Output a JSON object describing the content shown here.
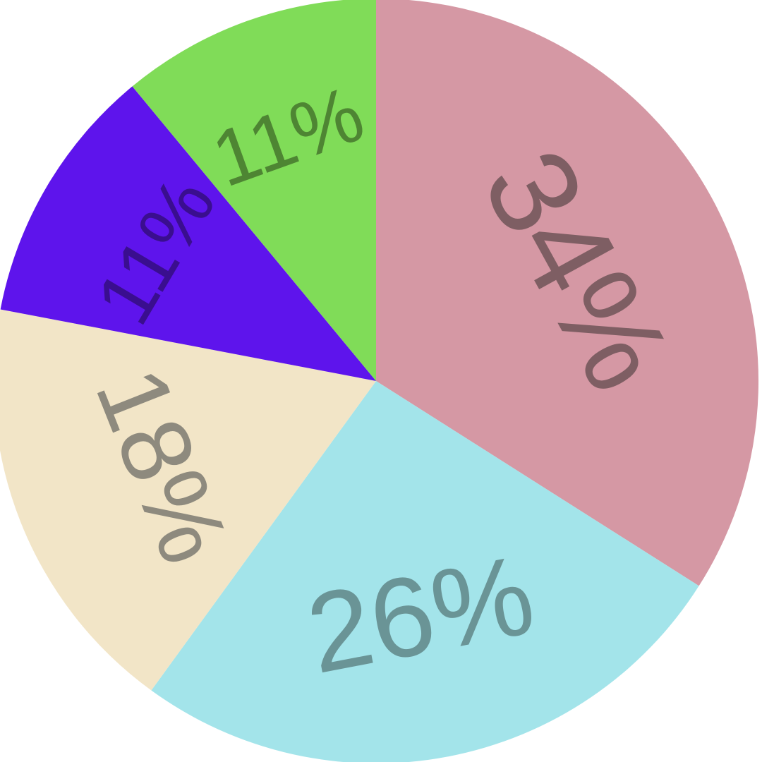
{
  "chart_data": {
    "type": "pie",
    "start": "top",
    "direction": "clockwise",
    "slices": [
      {
        "label": "34%",
        "value": 34,
        "color": "#D598A4",
        "label_color": "#7E5E63"
      },
      {
        "label": "26%",
        "value": 26,
        "color": "#A3E4EA",
        "label_color": "#6A9496"
      },
      {
        "label": "18%",
        "value": 18,
        "color": "#F2E5C7",
        "label_color": "#8E8A7E"
      },
      {
        "label": "11%",
        "value": 11,
        "color": "#5E14EC",
        "label_color": "#3A0E8F"
      },
      {
        "label": "11%",
        "value": 11,
        "color": "#80DC58",
        "label_color": "#4E8533"
      }
    ]
  }
}
